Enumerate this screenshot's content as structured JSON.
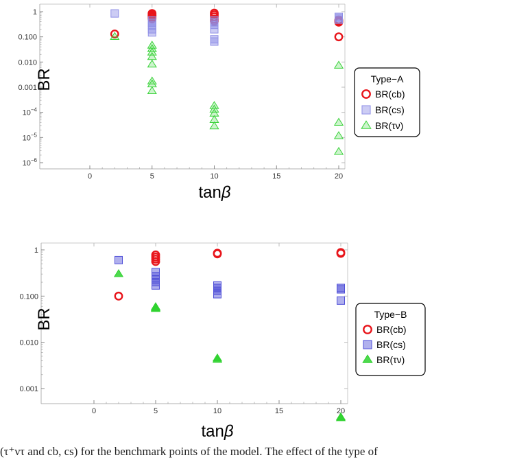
{
  "caption": "(τ⁺ντ and cb, cs) for the benchmark points of the model. The effect of the type of",
  "chart_data": [
    {
      "type": "scatter",
      "title": "",
      "xlabel": "tanβ",
      "ylabel": "BR",
      "xlim": [
        0,
        20
      ],
      "ylim": [
        1e-06,
        1.3
      ],
      "yscale": "log",
      "xticks": [
        {
          "value": 0,
          "label": "0"
        },
        {
          "value": 5,
          "label": "5"
        },
        {
          "value": 10,
          "label": "10"
        },
        {
          "value": 15,
          "label": "15"
        },
        {
          "value": 20,
          "label": "20"
        }
      ],
      "yticks": [
        {
          "value": 1,
          "label": "1"
        },
        {
          "value": 0.1,
          "label": "0.100"
        },
        {
          "value": 0.01,
          "label": "0.010"
        },
        {
          "value": 0.001,
          "label": "0.001"
        },
        {
          "value": 0.0001,
          "base": "10",
          "exp": "−4"
        },
        {
          "value": 1e-05,
          "base": "10",
          "exp": "−5"
        },
        {
          "value": 1e-06,
          "base": "10",
          "exp": "−6"
        }
      ],
      "legend": {
        "title": "Type−A",
        "position": "right"
      },
      "series": [
        {
          "name": "BR(cb)",
          "marker": "open-circle",
          "color": "#e8151b",
          "points": [
            [
              2,
              0.13
            ],
            [
              5,
              0.85
            ],
            [
              5,
              0.75
            ],
            [
              5,
              0.68
            ],
            [
              5,
              0.6
            ],
            [
              5,
              0.52
            ],
            [
              10,
              0.88
            ],
            [
              10,
              0.75
            ],
            [
              10,
              0.62
            ],
            [
              10,
              0.5
            ],
            [
              10,
              0.42
            ],
            [
              20,
              0.38
            ],
            [
              20,
              0.42
            ],
            [
              20,
              0.47
            ],
            [
              20,
              0.1
            ]
          ]
        },
        {
          "name": "BR(cs)",
          "marker": "square",
          "color": "#8f8fe6",
          "points": [
            [
              2,
              0.85
            ],
            [
              5,
              0.45
            ],
            [
              5,
              0.36
            ],
            [
              5,
              0.28
            ],
            [
              5,
              0.2
            ],
            [
              5,
              0.15
            ],
            [
              10,
              0.45
            ],
            [
              10,
              0.38
            ],
            [
              10,
              0.3
            ],
            [
              10,
              0.2
            ],
            [
              10,
              0.08
            ],
            [
              10,
              0.065
            ],
            [
              20,
              0.62
            ],
            [
              20,
              0.55
            ],
            [
              20,
              0.48
            ]
          ]
        },
        {
          "name": "BR(τν)",
          "marker": "triangle-open",
          "color": "#39d239",
          "points": [
            [
              2,
              0.1
            ],
            [
              5,
              0.045
            ],
            [
              5,
              0.033
            ],
            [
              5,
              0.024
            ],
            [
              5,
              0.016
            ],
            [
              5,
              0.008
            ],
            [
              5,
              0.0017
            ],
            [
              5,
              0.0013
            ],
            [
              5,
              0.0007
            ],
            [
              10,
              0.00018
            ],
            [
              10,
              0.00013
            ],
            [
              10,
              9e-05
            ],
            [
              10,
              5e-05
            ],
            [
              10,
              2.8e-05
            ],
            [
              20,
              0.0072
            ],
            [
              20,
              3.9e-05
            ],
            [
              20,
              1.15e-05
            ],
            [
              20,
              2.7e-06
            ]
          ]
        }
      ]
    },
    {
      "type": "scatter",
      "title": "",
      "xlabel": "tanβ",
      "ylabel": "BR",
      "xlim": [
        0,
        20
      ],
      "ylim": [
        0.00019,
        1.3
      ],
      "yscale": "log",
      "xticks": [
        {
          "value": 0,
          "label": "0"
        },
        {
          "value": 5,
          "label": "5"
        },
        {
          "value": 10,
          "label": "10"
        },
        {
          "value": 15,
          "label": "15"
        },
        {
          "value": 20,
          "label": "20"
        }
      ],
      "yticks": [
        {
          "value": 1,
          "label": "1"
        },
        {
          "value": 0.1,
          "label": "0.100"
        },
        {
          "value": 0.01,
          "label": "0.010"
        },
        {
          "value": 0.001,
          "label": "0.001"
        }
      ],
      "legend": {
        "title": "Type−B",
        "position": "right"
      },
      "series": [
        {
          "name": "BR(cb)",
          "marker": "open-circle",
          "color": "#e8151b",
          "points": [
            [
              2,
              0.1
            ],
            [
              5,
              0.78
            ],
            [
              5,
              0.7
            ],
            [
              5,
              0.63
            ],
            [
              5,
              0.56
            ],
            [
              10,
              0.85
            ],
            [
              10,
              0.82
            ],
            [
              20,
              0.88
            ],
            [
              20,
              0.84
            ]
          ]
        },
        {
          "name": "BR(cs)",
          "marker": "square",
          "color": "#4f4fd8",
          "points": [
            [
              2,
              0.6
            ],
            [
              5,
              0.33
            ],
            [
              5,
              0.27
            ],
            [
              5,
              0.23
            ],
            [
              5,
              0.2
            ],
            [
              5,
              0.17
            ],
            [
              10,
              0.17
            ],
            [
              10,
              0.15
            ],
            [
              10,
              0.13
            ],
            [
              10,
              0.11
            ],
            [
              20,
              0.15
            ],
            [
              20,
              0.14
            ],
            [
              20,
              0.08
            ]
          ]
        },
        {
          "name": "BR(τν)",
          "marker": "triangle-filled",
          "color": "#2fd22f",
          "points": [
            [
              2,
              0.3
            ],
            [
              5,
              0.058
            ],
            [
              5,
              0.055
            ],
            [
              5,
              0.053
            ],
            [
              10,
              0.0045
            ],
            [
              10,
              0.0042
            ],
            [
              20,
              0.00024
            ],
            [
              20,
              0.00023
            ]
          ]
        }
      ]
    }
  ]
}
